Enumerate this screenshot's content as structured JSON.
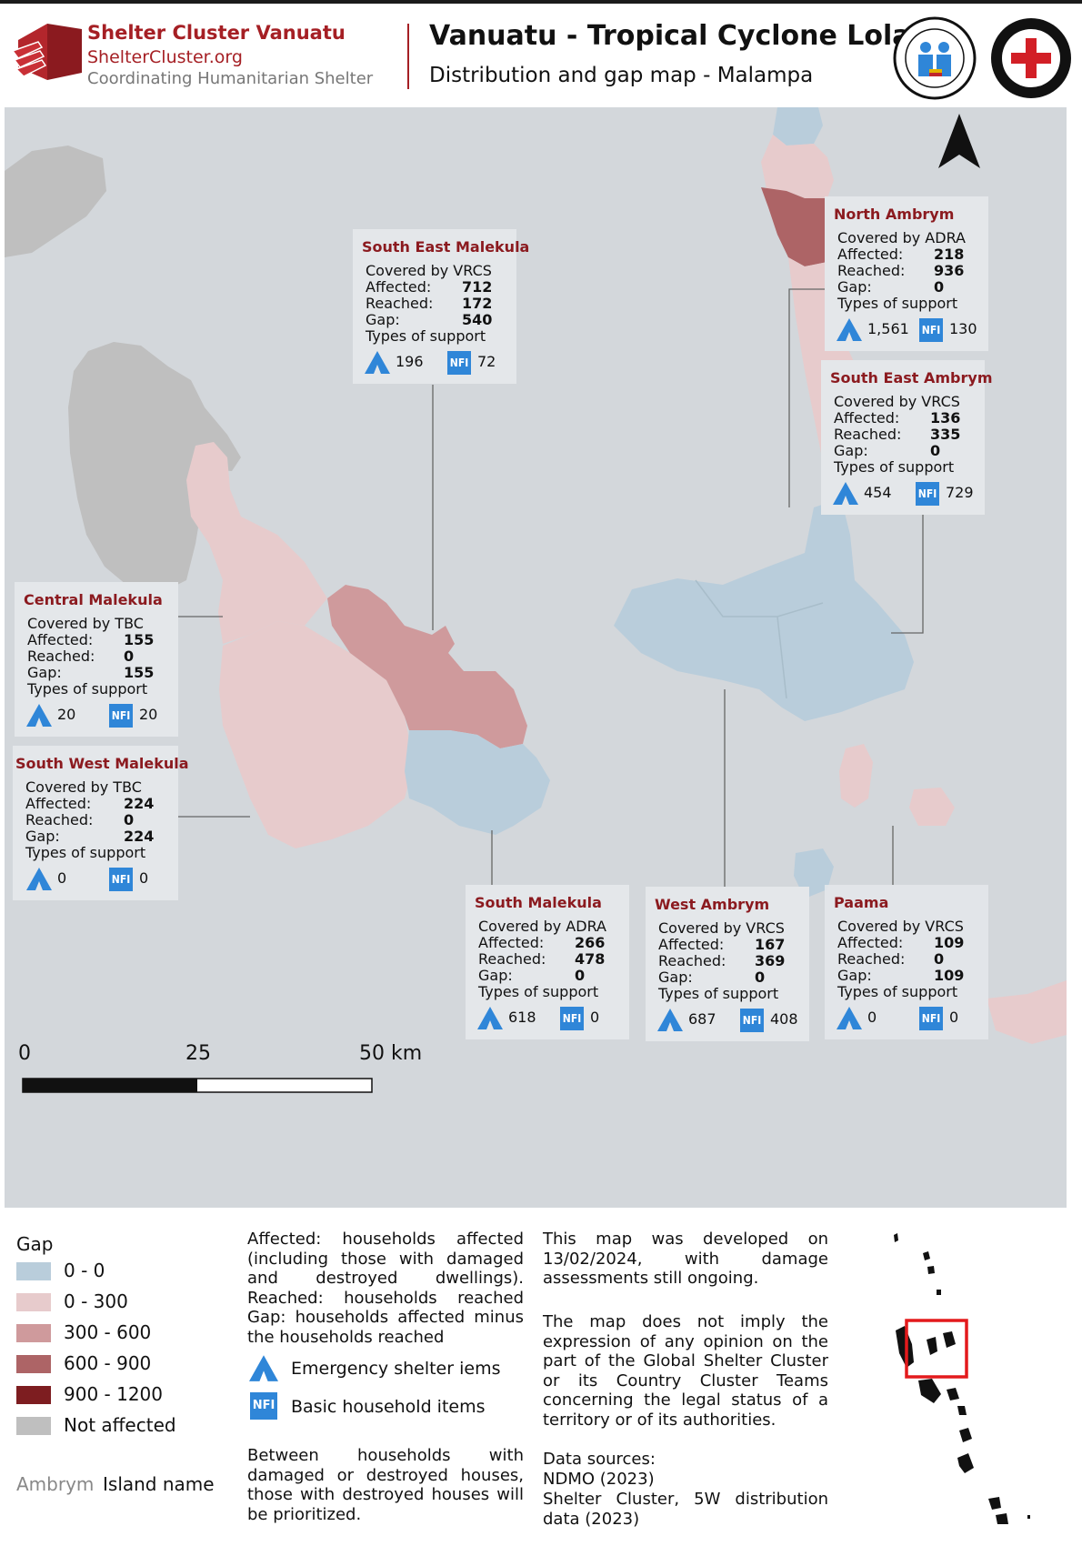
{
  "header": {
    "org_name": "Shelter Cluster Vanuatu",
    "org_site": "ShelterCluster.org",
    "org_tagline": "Coordinating Humanitarian Shelter",
    "title": "Vanuatu - Tropical Cyclone Lola",
    "subtitle": "Distribution and gap map - Malampa"
  },
  "colors": {
    "gap_0": "#b9cddb",
    "gap_0_300": "#e7cbcc",
    "gap_300_600": "#cf9a9c",
    "gap_600_900": "#ad6466",
    "gap_900_1200": "#7d1d20",
    "not_affected": "#bfbfbf",
    "sea": "#d3d7db",
    "title_red": "#8b1a1f",
    "nfi_blue": "#2f86d8"
  },
  "areas": [
    {
      "name": "South East Malekula",
      "covered_by": "Covered by VRCS",
      "affected": "712",
      "reached": "172",
      "gap": "540",
      "shelter": "196",
      "nfi": "72"
    },
    {
      "name": "North Ambrym",
      "covered_by": "Covered by ADRA",
      "affected": "218",
      "reached": "936",
      "gap": "0",
      "shelter": "1,561",
      "nfi": "130"
    },
    {
      "name": "South East Ambrym",
      "covered_by": "Covered by VRCS",
      "affected": "136",
      "reached": "335",
      "gap": "0",
      "shelter": "454",
      "nfi": "729"
    },
    {
      "name": "Central Malekula",
      "covered_by": "Covered by TBC",
      "affected": "155",
      "reached": "0",
      "gap": "155",
      "shelter": "20",
      "nfi": "20"
    },
    {
      "name": "South West Malekula",
      "covered_by": "Covered by TBC",
      "affected": "224",
      "reached": "0",
      "gap": "224",
      "shelter": "0",
      "nfi": "0"
    },
    {
      "name": "South Malekula",
      "covered_by": "Covered by ADRA",
      "affected": "266",
      "reached": "478",
      "gap": "0",
      "shelter": "618",
      "nfi": "0"
    },
    {
      "name": "West Ambrym",
      "covered_by": "Covered by VRCS",
      "affected": "167",
      "reached": "369",
      "gap": "0",
      "shelter": "687",
      "nfi": "408"
    },
    {
      "name": "Paama",
      "covered_by": "Covered by VRCS",
      "affected": "109",
      "reached": "0",
      "gap": "109",
      "shelter": "0",
      "nfi": "0"
    }
  ],
  "labels": {
    "affected": "Affected:",
    "reached": "Reached:",
    "gap": "Gap:",
    "types": "Types of support",
    "nfi": "NFI"
  },
  "scale": {
    "s0": "0",
    "s25": "25",
    "s50": "50 km"
  },
  "legend": {
    "title": "Gap",
    "classes": [
      "0 - 0",
      "0 - 300",
      "300 - 600",
      "600 - 900",
      "900 - 1200",
      "Not affected"
    ],
    "island_sample": "Ambrym",
    "island_label": "Island name",
    "definitions": "Affected: households affected (including those with damaged and destroyed dwellings). Reached: households reached Gap: households affected minus the households reached",
    "shelter_label": "Emergency shelter iems",
    "nfi_label": "Basic household items",
    "priority_note": "Between households with damaged or destroyed houses, those with destroyed houses will be prioritized.",
    "developed_note": "This map was developed on 13/02/2024, with damage assessments still ongoing.",
    "disclaimer": "The map does not imply the expression of any opinion on the part of the Global Shelter Cluster or its Country Cluster Teams concerning the legal status of a territory or of its authorities.",
    "sources_title": "Data sources:",
    "source_1": "NDMO (2023)",
    "source_2": "Shelter Cluster, 5W distribution data (2023)"
  }
}
